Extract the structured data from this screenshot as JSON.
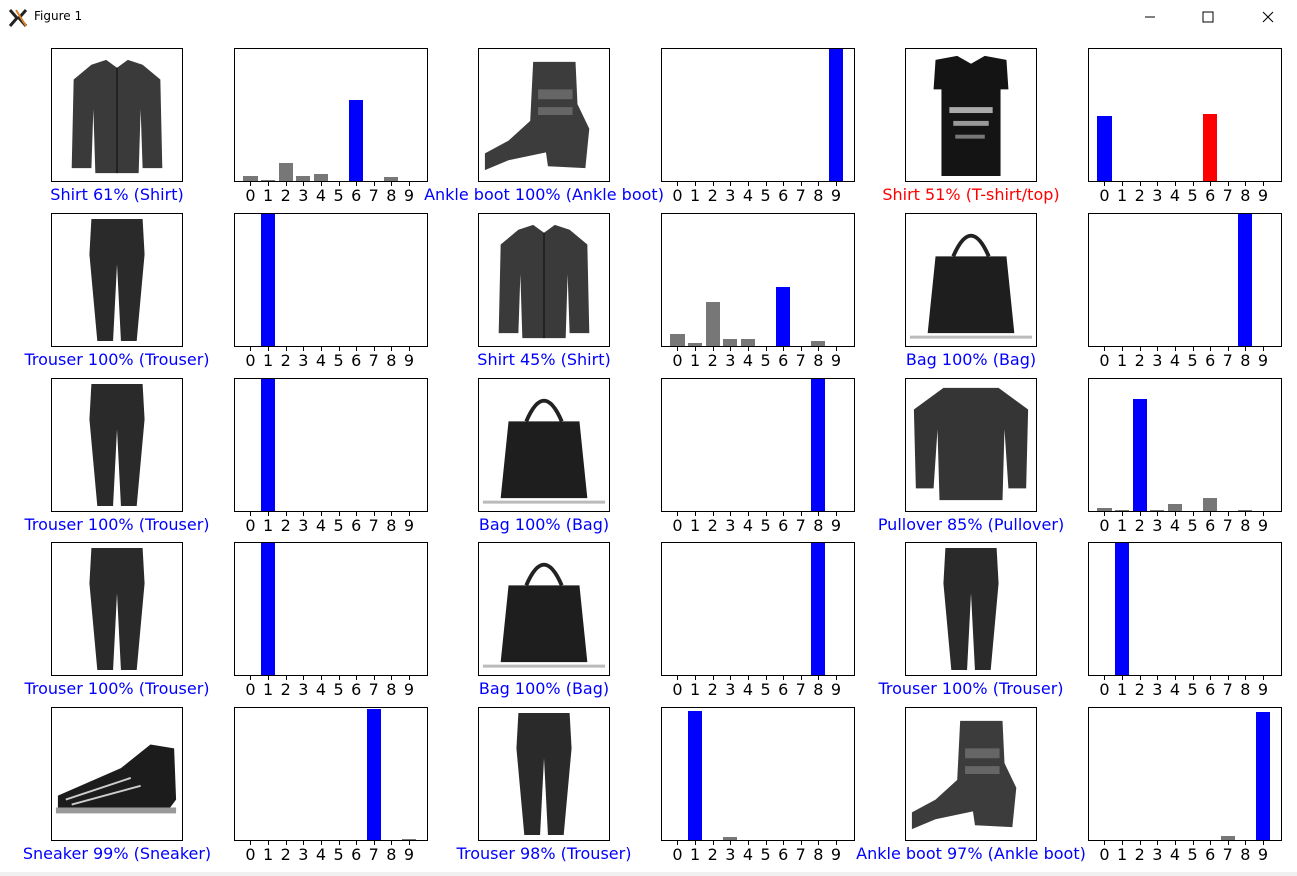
{
  "window": {
    "title": "Figure 1",
    "icons": [
      "app-logo-icon",
      "minimize-icon",
      "maximize-icon",
      "close-icon"
    ]
  },
  "colors": {
    "correct": "#0000ff",
    "wrong": "#ff0000",
    "other": "#777777"
  },
  "chart_data": [
    {
      "type": "bar",
      "caption": "Shirt 61% (Shirt)",
      "caption_color": "blue",
      "image": "shirt-image",
      "categories": [
        "0",
        "1",
        "2",
        "3",
        "4",
        "5",
        "6",
        "7",
        "8",
        "9"
      ],
      "values": [
        0.04,
        0.01,
        0.14,
        0.04,
        0.05,
        0,
        0.61,
        0,
        0.03,
        0
      ],
      "ylim": [
        0,
        1
      ],
      "bar_colors": [
        "other",
        "other",
        "other",
        "other",
        "other",
        "other",
        "correct",
        "other",
        "other",
        "other"
      ]
    },
    {
      "type": "bar",
      "caption": "Ankle boot 100% (Ankle boot)",
      "caption_color": "blue",
      "image": "ankle-boot-image",
      "categories": [
        "0",
        "1",
        "2",
        "3",
        "4",
        "5",
        "6",
        "7",
        "8",
        "9"
      ],
      "values": [
        0,
        0,
        0,
        0,
        0,
        0,
        0,
        0,
        0,
        1.0
      ],
      "ylim": [
        0,
        1
      ],
      "bar_colors": [
        "other",
        "other",
        "other",
        "other",
        "other",
        "other",
        "other",
        "other",
        "other",
        "correct"
      ]
    },
    {
      "type": "bar",
      "caption": "Shirt 51% (T-shirt/top)",
      "caption_color": "red",
      "image": "tshirt-image",
      "categories": [
        "0",
        "1",
        "2",
        "3",
        "4",
        "5",
        "6",
        "7",
        "8",
        "9"
      ],
      "values": [
        0.49,
        0,
        0,
        0,
        0,
        0,
        0.51,
        0,
        0,
        0
      ],
      "ylim": [
        0,
        1
      ],
      "bar_colors": [
        "correct",
        "other",
        "other",
        "other",
        "other",
        "other",
        "wrong",
        "other",
        "other",
        "other"
      ]
    },
    {
      "type": "bar",
      "caption": "Trouser 100% (Trouser)",
      "caption_color": "blue",
      "image": "trouser-image",
      "categories": [
        "0",
        "1",
        "2",
        "3",
        "4",
        "5",
        "6",
        "7",
        "8",
        "9"
      ],
      "values": [
        0,
        1.0,
        0,
        0,
        0,
        0,
        0,
        0,
        0,
        0
      ],
      "ylim": [
        0,
        1
      ],
      "bar_colors": [
        "other",
        "correct",
        "other",
        "other",
        "other",
        "other",
        "other",
        "other",
        "other",
        "other"
      ]
    },
    {
      "type": "bar",
      "caption": "Shirt 45% (Shirt)",
      "caption_color": "blue",
      "image": "shirt-image",
      "categories": [
        "0",
        "1",
        "2",
        "3",
        "4",
        "5",
        "6",
        "7",
        "8",
        "9"
      ],
      "values": [
        0.09,
        0.02,
        0.33,
        0.05,
        0.05,
        0,
        0.45,
        0,
        0.04,
        0
      ],
      "ylim": [
        0,
        1
      ],
      "bar_colors": [
        "other",
        "other",
        "other",
        "other",
        "other",
        "other",
        "correct",
        "other",
        "other",
        "other"
      ]
    },
    {
      "type": "bar",
      "caption": "Bag 100% (Bag)",
      "caption_color": "blue",
      "image": "bag-image",
      "categories": [
        "0",
        "1",
        "2",
        "3",
        "4",
        "5",
        "6",
        "7",
        "8",
        "9"
      ],
      "values": [
        0,
        0,
        0,
        0,
        0,
        0,
        0,
        0,
        1.0,
        0
      ],
      "ylim": [
        0,
        1
      ],
      "bar_colors": [
        "other",
        "other",
        "other",
        "other",
        "other",
        "other",
        "other",
        "other",
        "correct",
        "other"
      ]
    },
    {
      "type": "bar",
      "caption": "Trouser 100% (Trouser)",
      "caption_color": "blue",
      "image": "trouser-image",
      "categories": [
        "0",
        "1",
        "2",
        "3",
        "4",
        "5",
        "6",
        "7",
        "8",
        "9"
      ],
      "values": [
        0,
        1.0,
        0,
        0,
        0,
        0,
        0,
        0,
        0,
        0
      ],
      "ylim": [
        0,
        1
      ],
      "bar_colors": [
        "other",
        "correct",
        "other",
        "other",
        "other",
        "other",
        "other",
        "other",
        "other",
        "other"
      ]
    },
    {
      "type": "bar",
      "caption": "Bag 100% (Bag)",
      "caption_color": "blue",
      "image": "bag-image",
      "categories": [
        "0",
        "1",
        "2",
        "3",
        "4",
        "5",
        "6",
        "7",
        "8",
        "9"
      ],
      "values": [
        0,
        0,
        0,
        0,
        0,
        0,
        0,
        0,
        1.0,
        0
      ],
      "ylim": [
        0,
        1
      ],
      "bar_colors": [
        "other",
        "other",
        "other",
        "other",
        "other",
        "other",
        "other",
        "other",
        "correct",
        "other"
      ]
    },
    {
      "type": "bar",
      "caption": "Pullover 85% (Pullover)",
      "caption_color": "blue",
      "image": "pullover-image",
      "categories": [
        "0",
        "1",
        "2",
        "3",
        "4",
        "5",
        "6",
        "7",
        "8",
        "9"
      ],
      "values": [
        0.02,
        0.01,
        0.85,
        0.01,
        0.05,
        0,
        0.1,
        0,
        0.01,
        0
      ],
      "ylim": [
        0,
        1
      ],
      "bar_colors": [
        "other",
        "other",
        "correct",
        "other",
        "other",
        "other",
        "other",
        "other",
        "other",
        "other"
      ]
    },
    {
      "type": "bar",
      "caption": "Trouser 100% (Trouser)",
      "caption_color": "blue",
      "image": "trouser-image",
      "categories": [
        "0",
        "1",
        "2",
        "3",
        "4",
        "5",
        "6",
        "7",
        "8",
        "9"
      ],
      "values": [
        0,
        1.0,
        0,
        0,
        0,
        0,
        0,
        0,
        0,
        0
      ],
      "ylim": [
        0,
        1
      ],
      "bar_colors": [
        "other",
        "correct",
        "other",
        "other",
        "other",
        "other",
        "other",
        "other",
        "other",
        "other"
      ]
    },
    {
      "type": "bar",
      "caption": "Bag 100% (Bag)",
      "caption_color": "blue",
      "image": "bag-image",
      "categories": [
        "0",
        "1",
        "2",
        "3",
        "4",
        "5",
        "6",
        "7",
        "8",
        "9"
      ],
      "values": [
        0,
        0,
        0,
        0,
        0,
        0,
        0,
        0,
        1.0,
        0
      ],
      "ylim": [
        0,
        1
      ],
      "bar_colors": [
        "other",
        "other",
        "other",
        "other",
        "other",
        "other",
        "other",
        "other",
        "correct",
        "other"
      ]
    },
    {
      "type": "bar",
      "caption": "Trouser 100% (Trouser)",
      "caption_color": "blue",
      "image": "trouser-image",
      "categories": [
        "0",
        "1",
        "2",
        "3",
        "4",
        "5",
        "6",
        "7",
        "8",
        "9"
      ],
      "values": [
        0,
        1.0,
        0,
        0,
        0,
        0,
        0,
        0,
        0,
        0
      ],
      "ylim": [
        0,
        1
      ],
      "bar_colors": [
        "other",
        "correct",
        "other",
        "other",
        "other",
        "other",
        "other",
        "other",
        "other",
        "other"
      ]
    },
    {
      "type": "bar",
      "caption": "Sneaker 99% (Sneaker)",
      "caption_color": "blue",
      "image": "sneaker-image",
      "categories": [
        "0",
        "1",
        "2",
        "3",
        "4",
        "5",
        "6",
        "7",
        "8",
        "9"
      ],
      "values": [
        0,
        0,
        0,
        0,
        0,
        0,
        0,
        0.99,
        0,
        0.01
      ],
      "ylim": [
        0,
        1
      ],
      "bar_colors": [
        "other",
        "other",
        "other",
        "other",
        "other",
        "other",
        "other",
        "correct",
        "other",
        "other"
      ]
    },
    {
      "type": "bar",
      "caption": "Trouser 98% (Trouser)",
      "caption_color": "blue",
      "image": "trouser-image",
      "categories": [
        "0",
        "1",
        "2",
        "3",
        "4",
        "5",
        "6",
        "7",
        "8",
        "9"
      ],
      "values": [
        0,
        0.98,
        0,
        0.02,
        0,
        0,
        0,
        0,
        0,
        0
      ],
      "ylim": [
        0,
        1
      ],
      "bar_colors": [
        "other",
        "correct",
        "other",
        "other",
        "other",
        "other",
        "other",
        "other",
        "other",
        "other"
      ]
    },
    {
      "type": "bar",
      "caption": "Ankle boot 97% (Ankle boot)",
      "caption_color": "blue",
      "image": "ankle-boot-image",
      "categories": [
        "0",
        "1",
        "2",
        "3",
        "4",
        "5",
        "6",
        "7",
        "8",
        "9"
      ],
      "values": [
        0,
        0,
        0,
        0,
        0,
        0,
        0,
        0.03,
        0,
        0.97
      ],
      "ylim": [
        0,
        1
      ],
      "bar_colors": [
        "other",
        "other",
        "other",
        "other",
        "other",
        "other",
        "other",
        "other",
        "other",
        "correct"
      ]
    }
  ]
}
